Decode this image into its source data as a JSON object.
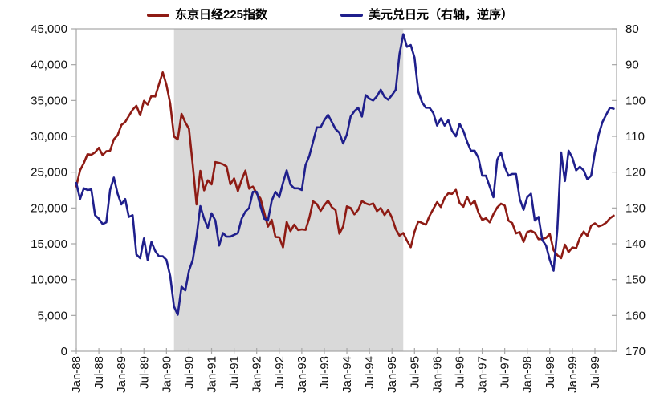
{
  "chart_data": {
    "type": "line",
    "title": "",
    "legend_position": "top",
    "grid": false,
    "legend": [
      {
        "label": "东京日经225指数",
        "color": "#8e1b14"
      },
      {
        "label": "美元兑日元（右轴，逆序）",
        "color": "#1f1f8c"
      }
    ],
    "x_axis": {
      "start": "Jan-88",
      "end": "Dec-99",
      "months_per_tick": 6,
      "tick_labels": [
        "Jan-88",
        "Jul-88",
        "Jan-89",
        "Jul-89",
        "Jan-90",
        "Jul-90",
        "Jan-91",
        "Jul-91",
        "Jan-92",
        "Jul-92",
        "Jan-93",
        "Jul-93",
        "Jan-94",
        "Jul-94",
        "Jan-95",
        "Jul-95",
        "Jan-96",
        "Jul-96",
        "Jan-97",
        "Jul-97",
        "Jan-98",
        "Jul-98",
        "Jan-99",
        "Jul-99"
      ]
    },
    "left_axis": {
      "min": 0,
      "max": 45000,
      "step": 5000,
      "tick_labels": [
        "45,000",
        "40,000",
        "35,000",
        "30,000",
        "25,000",
        "20,000",
        "15,000",
        "10,000",
        "5,000",
        "0"
      ]
    },
    "right_axis": {
      "min": 80,
      "max": 170,
      "step": 10,
      "inverted": true,
      "tick_labels": [
        "80",
        "90",
        "100",
        "110",
        "120",
        "130",
        "140",
        "150",
        "160",
        "170"
      ]
    },
    "shaded_band": {
      "start": "Mar-90",
      "end": "Apr-95",
      "start_month_index": 26,
      "end_month_index": 87,
      "color": "#d9d9d9"
    },
    "axis_line_color": "#a6a6a6",
    "label_color": "#111111",
    "series": [
      {
        "name": "东京日经225指数",
        "axis": "left",
        "color": "#8e1b14",
        "frequency": "monthly",
        "values": [
          23000,
          25250,
          26260,
          27500,
          27420,
          27770,
          28400,
          27370,
          27920,
          27980,
          29580,
          30160,
          31580,
          31990,
          32840,
          33710,
          34270,
          32950,
          34950,
          34430,
          35640,
          35550,
          37270,
          38920,
          37190,
          34590,
          29980,
          29580,
          33130,
          31940,
          31040,
          25980,
          20500,
          25190,
          22450,
          23850,
          23290,
          26410,
          26290,
          26110,
          25790,
          23290,
          24120,
          22340,
          23920,
          25220,
          22690,
          22980,
          22020,
          21340,
          19350,
          17390,
          18350,
          15950,
          15910,
          14500,
          18060,
          16770,
          17680,
          16930,
          17020,
          16950,
          18590,
          20920,
          20550,
          19590,
          20380,
          21030,
          20110,
          19700,
          16410,
          17420,
          20230,
          20000,
          19110,
          19730,
          20970,
          20640,
          20450,
          20630,
          19560,
          19990,
          19010,
          19720,
          18650,
          17050,
          16140,
          16500,
          15440,
          14520,
          16680,
          18120,
          17910,
          17660,
          18880,
          19870,
          20810,
          20130,
          21410,
          22040,
          21960,
          22530,
          20690,
          20170,
          21560,
          20470,
          21020,
          19360,
          18330,
          18560,
          18000,
          19150,
          20070,
          20600,
          20330,
          18230,
          17890,
          16460,
          16640,
          15260,
          16630,
          16830,
          16530,
          15640,
          15670,
          15830,
          16380,
          14110,
          13410,
          13000,
          14880,
          13840,
          14500,
          14370,
          15840,
          16700,
          16110,
          17530,
          17860,
          17430,
          17610,
          17940,
          18560,
          18930
        ]
      },
      {
        "name": "美元兑日元（右轴，逆序）",
        "axis": "right",
        "color": "#1f1f8c",
        "frequency": "monthly",
        "values": [
          123,
          127.5,
          124.5,
          125,
          124.8,
          132,
          133,
          134.5,
          134,
          125,
          121.5,
          126,
          129,
          127.5,
          132.5,
          132,
          143,
          144,
          138.5,
          144.5,
          139.5,
          142,
          143.5,
          143.5,
          144.5,
          149,
          157.5,
          159.8,
          152,
          153,
          147.5,
          144.5,
          138,
          129.5,
          133,
          135.5,
          131.5,
          133.5,
          140.5,
          137,
          138,
          138,
          137.5,
          137,
          133,
          131,
          130,
          125.5,
          125.5,
          129.5,
          133,
          133.5,
          128,
          125.5,
          127,
          123,
          119.5,
          123.5,
          124.5,
          124.5,
          125,
          118,
          115.5,
          111.5,
          107.5,
          107.5,
          105.5,
          104,
          106,
          108,
          109,
          112,
          109.5,
          104.5,
          103,
          102,
          104.5,
          98.5,
          99.5,
          100,
          98.8,
          97,
          99,
          99.8,
          98.5,
          97,
          87,
          81.5,
          85,
          84.5,
          88,
          97.5,
          100.5,
          102,
          102,
          103.5,
          107,
          105,
          107,
          105.5,
          108.5,
          110,
          106.5,
          108.5,
          111.5,
          114,
          114,
          116,
          121,
          121,
          124,
          127,
          116.5,
          114.5,
          118.5,
          121,
          120.5,
          120.5,
          127.5,
          130.5,
          127,
          126,
          133.5,
          132.5,
          139,
          140.5,
          144.5,
          147.5,
          136,
          114.5,
          122.5,
          114,
          116,
          119.5,
          118.5,
          119.5,
          122,
          121,
          114.5,
          109.5,
          106,
          104,
          102,
          102.3
        ]
      }
    ]
  }
}
